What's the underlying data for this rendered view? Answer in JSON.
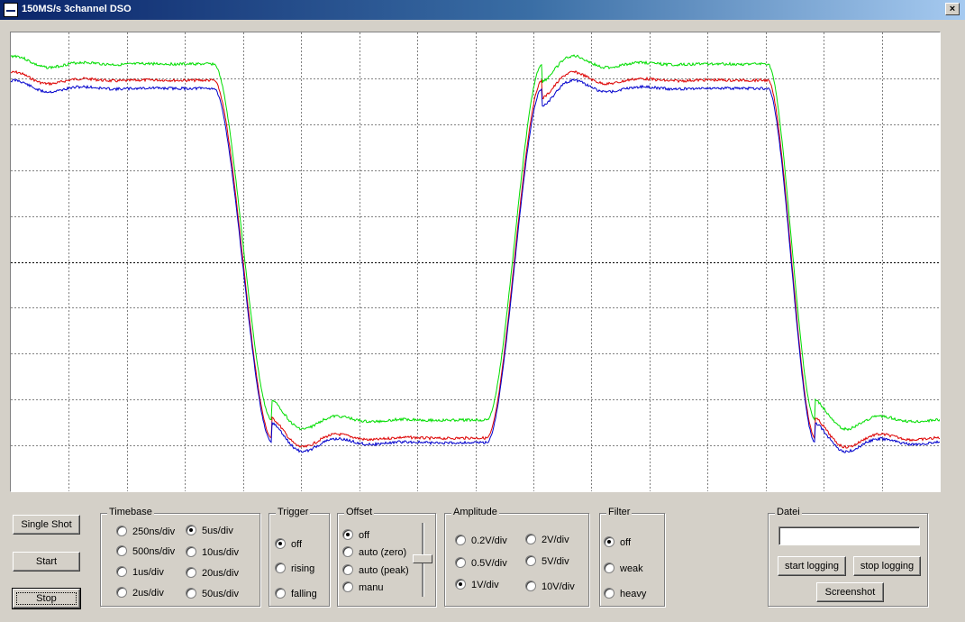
{
  "window": {
    "title": "150MS/s 3channel DSO",
    "close_label": "×"
  },
  "colors": {
    "background": "#d4d0c8",
    "scope_bg": "#ffffff",
    "grid": "#808080",
    "ch_green": "#00dd00",
    "ch_red": "#dd0000",
    "ch_blue": "#0000cc"
  },
  "buttons": {
    "single_shot": "Single Shot",
    "start": "Start",
    "stop": "Stop"
  },
  "timebase": {
    "label": "Timebase",
    "options": [
      "250ns/div",
      "500ns/div",
      "1us/div",
      "2us/div",
      "5us/div",
      "10us/div",
      "20us/div",
      "50us/div"
    ],
    "selected": "5us/div"
  },
  "trigger": {
    "label": "Trigger",
    "options": [
      "off",
      "rising",
      "falling"
    ],
    "selected": "off"
  },
  "offset": {
    "label": "Offset",
    "options": [
      "off",
      "auto (zero)",
      "auto (peak)",
      "manu"
    ],
    "selected": "off"
  },
  "amplitude": {
    "label": "Amplitude",
    "options": [
      "0.2V/div",
      "0.5V/div",
      "1V/div",
      "2V/div",
      "5V/div",
      "10V/div"
    ],
    "selected": "1V/div"
  },
  "filter": {
    "label": "Filter",
    "options": [
      "off",
      "weak",
      "heavy"
    ],
    "selected": "off"
  },
  "datei": {
    "label": "Datei",
    "filename_value": "",
    "start_logging": "start logging",
    "stop_logging": "stop logging",
    "screenshot": "Screenshot"
  }
}
